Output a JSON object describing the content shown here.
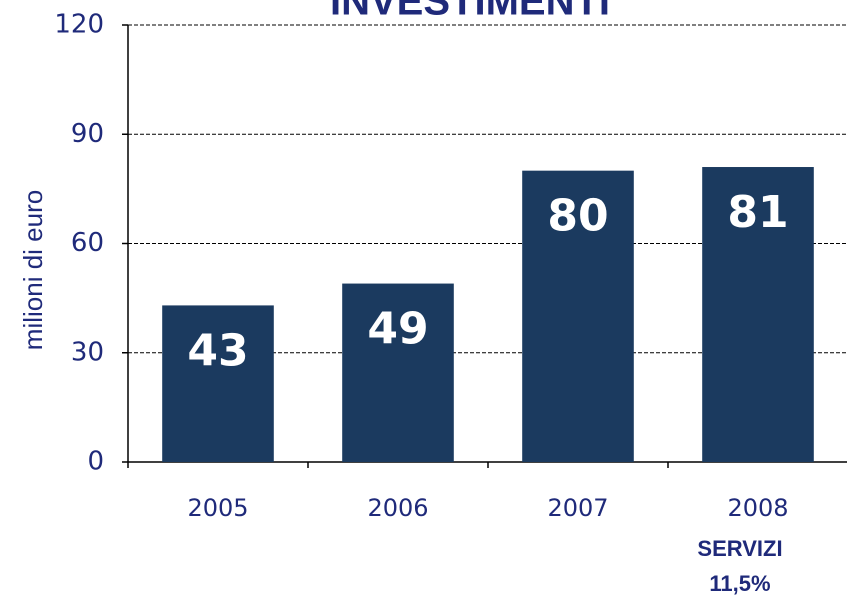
{
  "chart_data": {
    "type": "bar",
    "title": "INVESTIMENTI",
    "y_label": "milioni di euro",
    "categories": [
      "2005",
      "2006",
      "2007",
      "2008"
    ],
    "values": [
      43,
      49,
      80,
      81
    ],
    "color": "#1b3a5f",
    "ylim": [
      0,
      120
    ],
    "yticks": [
      0,
      30,
      60,
      90,
      120
    ],
    "grid": true,
    "annotation": [
      "SERVIZI",
      "11,5%"
    ]
  }
}
